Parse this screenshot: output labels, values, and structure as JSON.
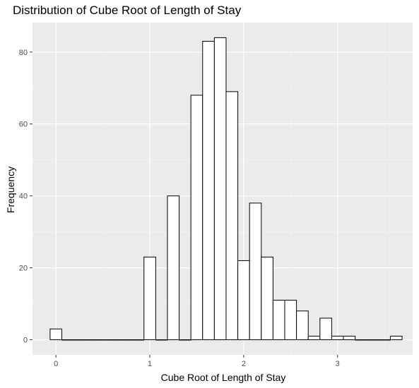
{
  "chart_data": {
    "type": "histogram",
    "title": "Distribution of Cube Root of Length of Stay",
    "xlabel": "Cube Root of Length of Stay",
    "ylabel": "Frequency",
    "bin_width": 0.125,
    "bins": [
      {
        "x": 0.0,
        "count": 3
      },
      {
        "x": 0.125,
        "count": 0
      },
      {
        "x": 0.25,
        "count": 0
      },
      {
        "x": 0.375,
        "count": 0
      },
      {
        "x": 0.5,
        "count": 0
      },
      {
        "x": 0.625,
        "count": 0
      },
      {
        "x": 0.75,
        "count": 0
      },
      {
        "x": 0.875,
        "count": 0
      },
      {
        "x": 1.0,
        "count": 23
      },
      {
        "x": 1.125,
        "count": 0
      },
      {
        "x": 1.25,
        "count": 40
      },
      {
        "x": 1.375,
        "count": 0
      },
      {
        "x": 1.5,
        "count": 68
      },
      {
        "x": 1.625,
        "count": 83
      },
      {
        "x": 1.75,
        "count": 84
      },
      {
        "x": 1.875,
        "count": 69
      },
      {
        "x": 2.0,
        "count": 22
      },
      {
        "x": 2.125,
        "count": 38
      },
      {
        "x": 2.25,
        "count": 23
      },
      {
        "x": 2.375,
        "count": 11
      },
      {
        "x": 2.5,
        "count": 11
      },
      {
        "x": 2.625,
        "count": 8
      },
      {
        "x": 2.75,
        "count": 1
      },
      {
        "x": 2.875,
        "count": 6
      },
      {
        "x": 3.0,
        "count": 1
      },
      {
        "x": 3.125,
        "count": 1
      },
      {
        "x": 3.25,
        "count": 0
      },
      {
        "x": 3.375,
        "count": 0
      },
      {
        "x": 3.5,
        "count": 0
      },
      {
        "x": 3.625,
        "count": 1
      }
    ],
    "xlim": [
      -0.25,
      3.8
    ],
    "ylim": [
      -4.2,
      88.2
    ],
    "x_ticks": [
      0,
      1,
      2,
      3
    ],
    "y_ticks": [
      0,
      20,
      40,
      60,
      80
    ],
    "x_minor": [
      0.5,
      1.5,
      2.5,
      3.5
    ],
    "y_minor": [
      10,
      30,
      50,
      70
    ],
    "grid": true,
    "legend": "none",
    "colors": {
      "panel": "#ebebeb",
      "grid_major": "#ffffff",
      "grid_minor": "#f5f5f5",
      "bar_fill": "#ffffff",
      "bar_stroke": "#000000",
      "tick": "#333333"
    }
  }
}
